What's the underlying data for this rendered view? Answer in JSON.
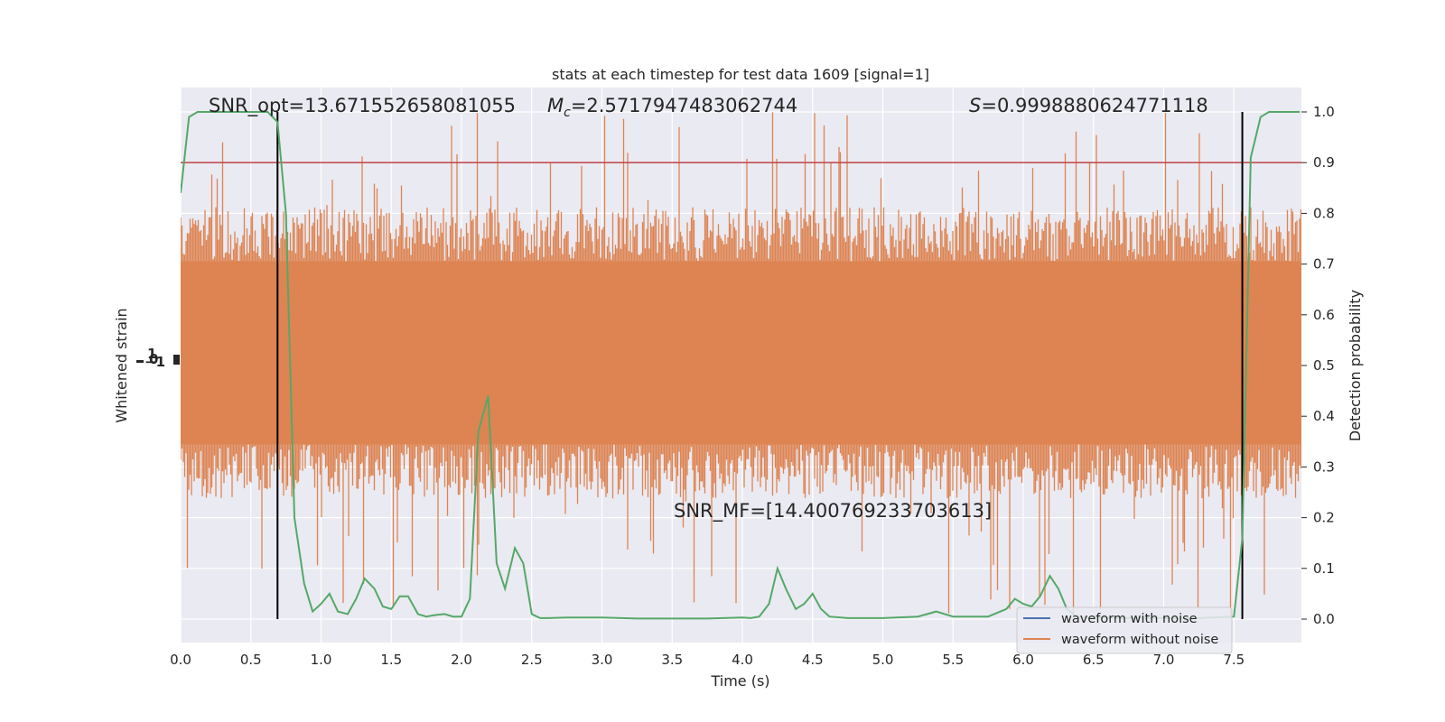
{
  "chart_data": {
    "type": "line",
    "title": "stats at each timestep for test data 1609 [signal=1]",
    "xlabel": "Time (s)",
    "ylabel_left": "Whitened strain",
    "ylabel_right": "Detection probability",
    "xlim": [
      0.0,
      8.0
    ],
    "ylim_right": [
      -0.05,
      1.05
    ],
    "x_ticks": [
      "0.0",
      "0.5",
      "1.0",
      "1.5",
      "2.0",
      "2.5",
      "3.0",
      "3.5",
      "4.0",
      "4.5",
      "5.0",
      "5.5",
      "6.0",
      "6.5",
      "7.0",
      "7.5"
    ],
    "y_right_ticks": [
      "0.0",
      "0.1",
      "0.2",
      "0.3",
      "0.4",
      "0.5",
      "0.6",
      "0.7",
      "0.8",
      "0.9",
      "1.0"
    ],
    "grid": true,
    "legend_position": "lower-right",
    "annotations": {
      "snr_opt": "SNR_opt=13.671552658081055",
      "mc_symbol": "M",
      "mc_sub": "c",
      "mc_value": "=2.5717947483062744",
      "s_symbol": "S",
      "s_value": "=0.9998880624771118",
      "snr_mf": "SNR_MF=[14.400769233703613]"
    },
    "threshold": 0.9,
    "signal_window": [
      0.69,
      7.56
    ],
    "series": [
      {
        "name": "waveform with noise",
        "color": "#4c72b0",
        "visible_extent": "hidden"
      },
      {
        "name": "waveform without noise",
        "color": "#dd8452",
        "band_typical": [
          0.3,
          0.75
        ],
        "band_extreme": [
          0.0,
          1.0
        ]
      },
      {
        "name": "",
        "color": "#55a868",
        "x": [
          0.0,
          0.06,
          0.12,
          0.19,
          0.25,
          0.31,
          0.38,
          0.44,
          0.5,
          0.56,
          0.62,
          0.69,
          0.75,
          0.81,
          0.88,
          0.94,
          1.0,
          1.06,
          1.12,
          1.19,
          1.25,
          1.31,
          1.38,
          1.44,
          1.5,
          1.56,
          1.62,
          1.69,
          1.75,
          1.81,
          1.88,
          1.94,
          2.0,
          2.06,
          2.12,
          2.19,
          2.25,
          2.31,
          2.38,
          2.44,
          2.5,
          2.56,
          2.62,
          2.75,
          3.0,
          3.25,
          3.5,
          3.75,
          4.0,
          4.06,
          4.12,
          4.19,
          4.25,
          4.31,
          4.38,
          4.44,
          4.5,
          4.56,
          4.62,
          4.75,
          5.0,
          5.25,
          5.38,
          5.5,
          5.75,
          5.88,
          5.94,
          6.0,
          6.06,
          6.12,
          6.19,
          6.25,
          6.31,
          6.38,
          6.5,
          6.75,
          7.0,
          7.25,
          7.5,
          7.56,
          7.62,
          7.69,
          7.75,
          7.81,
          7.88,
          7.97
        ],
        "y": [
          0.84,
          0.99,
          1.0,
          1.0,
          1.0,
          1.0,
          1.0,
          1.0,
          1.0,
          1.0,
          1.0,
          0.98,
          0.8,
          0.2,
          0.07,
          0.015,
          0.03,
          0.05,
          0.015,
          0.01,
          0.04,
          0.08,
          0.06,
          0.025,
          0.02,
          0.045,
          0.045,
          0.01,
          0.005,
          0.008,
          0.01,
          0.005,
          0.005,
          0.04,
          0.37,
          0.44,
          0.11,
          0.06,
          0.14,
          0.11,
          0.01,
          0.002,
          0.002,
          0.003,
          0.003,
          0.001,
          0.001,
          0.001,
          0.003,
          0.002,
          0.005,
          0.03,
          0.1,
          0.06,
          0.02,
          0.03,
          0.05,
          0.02,
          0.005,
          0.002,
          0.002,
          0.005,
          0.015,
          0.005,
          0.005,
          0.02,
          0.04,
          0.03,
          0.025,
          0.045,
          0.085,
          0.06,
          0.02,
          0.005,
          0.003,
          0.002,
          0.002,
          0.002,
          0.005,
          0.16,
          0.91,
          0.99,
          1.0,
          1.0,
          1.0,
          1.0
        ]
      }
    ],
    "colors": {
      "axes_bg": "#eaeaf2",
      "grid": "#ffffff",
      "threshold": "#c44e52",
      "vline": "#000000"
    }
  }
}
